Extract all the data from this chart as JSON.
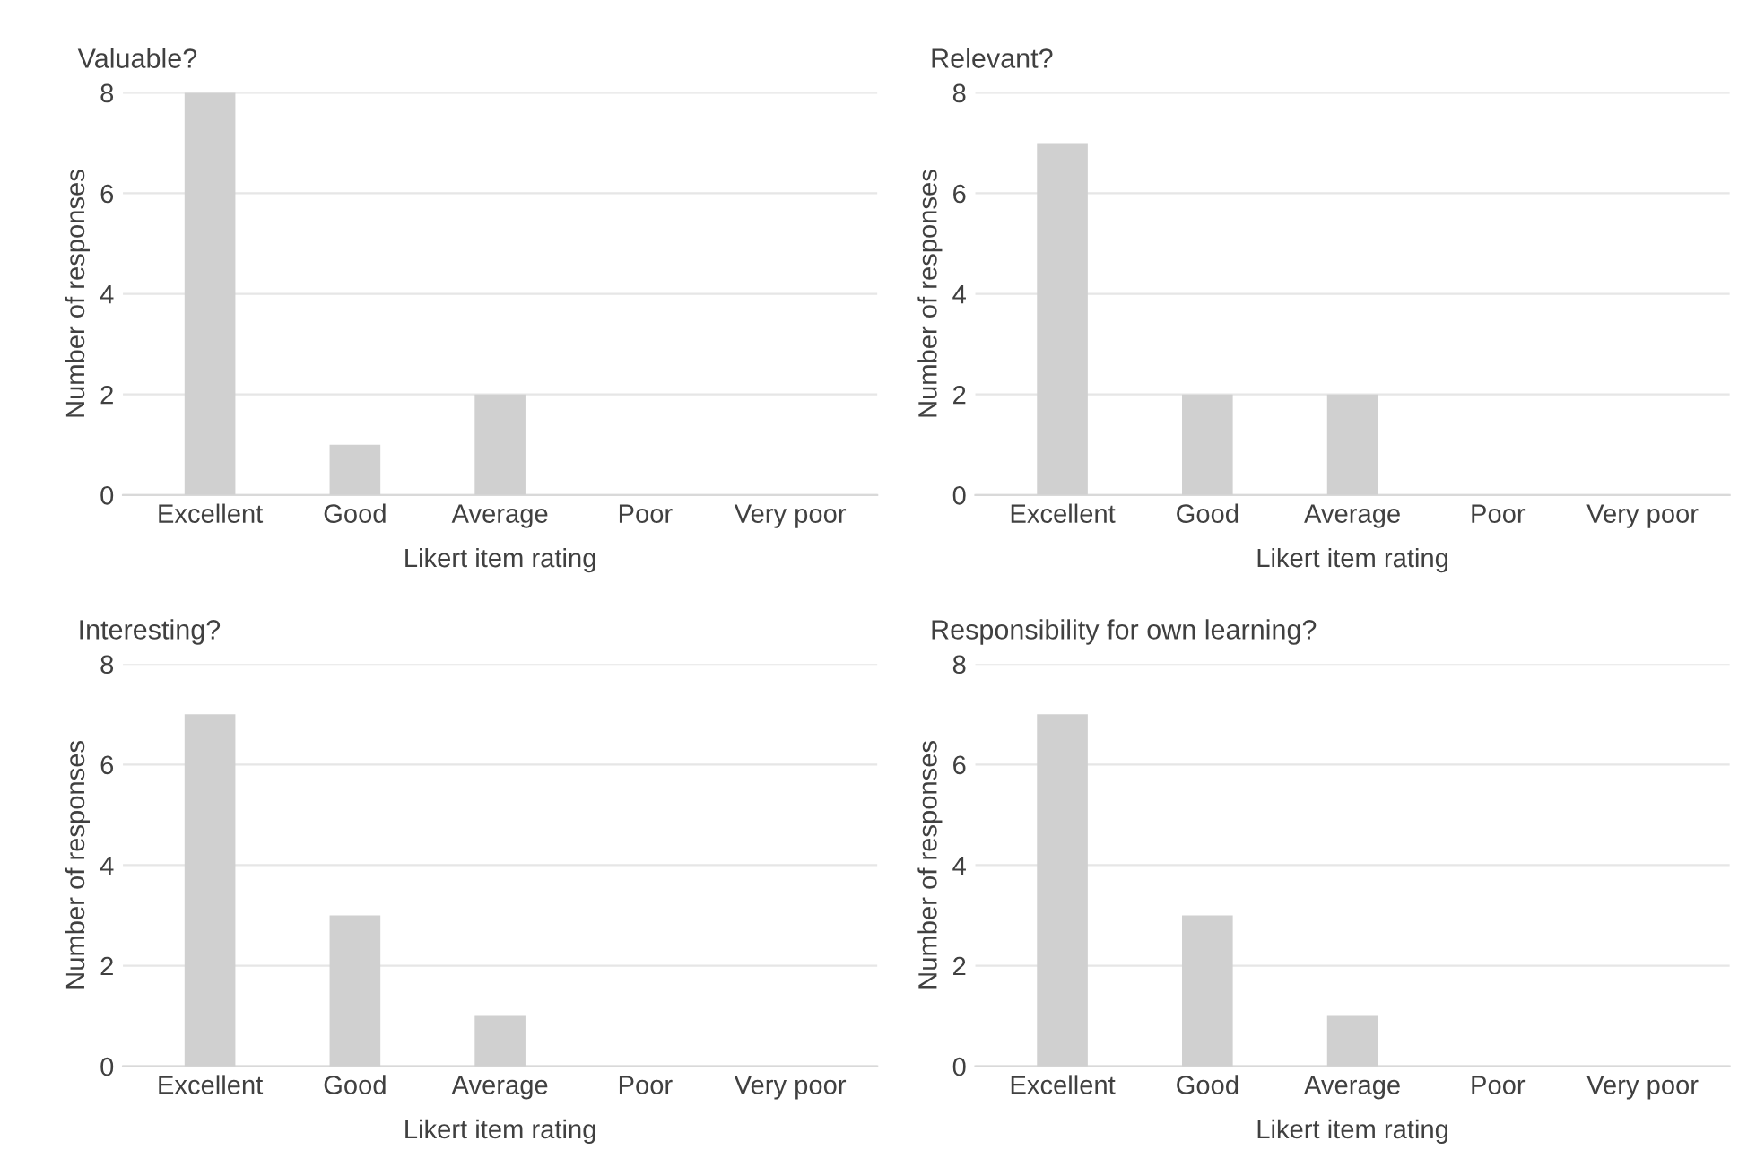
{
  "chart_data": [
    {
      "type": "bar",
      "title": "Valuable?",
      "xlabel": "Likert item rating",
      "ylabel": "Number of responses",
      "categories": [
        "Excellent",
        "Good",
        "Average",
        "Poor",
        "Very poor"
      ],
      "values": [
        8,
        1,
        2,
        0,
        0
      ],
      "color": "#d0d0d0",
      "ylim": [
        0,
        8
      ],
      "yticks": [
        0,
        2,
        4,
        6,
        8
      ],
      "grid": "y"
    },
    {
      "type": "bar",
      "title": "Relevant?",
      "xlabel": "Likert item rating",
      "ylabel": "Number of responses",
      "categories": [
        "Excellent",
        "Good",
        "Average",
        "Poor",
        "Very poor"
      ],
      "values": [
        7,
        2,
        2,
        0,
        0
      ],
      "color": "#d0d0d0",
      "ylim": [
        0,
        8
      ],
      "yticks": [
        0,
        2,
        4,
        6,
        8
      ],
      "grid": "y"
    },
    {
      "type": "bar",
      "title": "Interesting?",
      "xlabel": "Likert item rating",
      "ylabel": "Number of responses",
      "categories": [
        "Excellent",
        "Good",
        "Average",
        "Poor",
        "Very poor"
      ],
      "values": [
        7,
        3,
        1,
        0,
        0
      ],
      "color": "#d0d0d0",
      "ylim": [
        0,
        8
      ],
      "yticks": [
        0,
        2,
        4,
        6,
        8
      ],
      "grid": "y"
    },
    {
      "type": "bar",
      "title": "Responsibility for own learning?",
      "xlabel": "Likert item rating",
      "ylabel": "Number of responses",
      "categories": [
        "Excellent",
        "Good",
        "Average",
        "Poor",
        "Very poor"
      ],
      "values": [
        7,
        3,
        1,
        0,
        0
      ],
      "color": "#d0d0d0",
      "ylim": [
        0,
        8
      ],
      "yticks": [
        0,
        2,
        4,
        6,
        8
      ],
      "grid": "y"
    }
  ]
}
